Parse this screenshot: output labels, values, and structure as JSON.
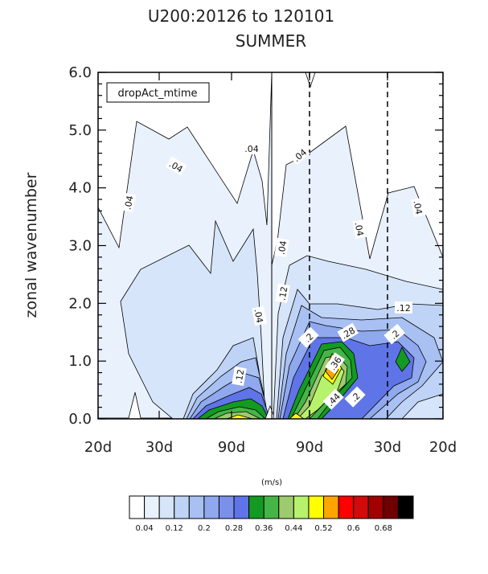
{
  "chart_data": {
    "type": "heatmap",
    "title": "U200:20126 to 120101",
    "subtitle": "SUMMER",
    "ylabel": "zonal wavenumber",
    "ylim": [
      0,
      6
    ],
    "yticks": [
      "0.0",
      "1.0",
      "2.0",
      "3.0",
      "4.0",
      "5.0",
      "6.0"
    ],
    "xticks": [
      "20d",
      "30d",
      "90d",
      "90d",
      "30d",
      "20d"
    ],
    "legend_box": "dropAct_mtime",
    "units": "(m/s)",
    "levels": [
      0.04,
      0.08,
      0.12,
      0.16,
      0.2,
      0.24,
      0.28,
      0.32,
      0.36,
      0.4,
      0.44,
      0.48,
      0.52,
      0.56,
      0.6,
      0.64,
      0.68
    ],
    "colorbar_labels": [
      "0.04",
      "0.12",
      "0.2",
      "0.28",
      "0.36",
      "0.44",
      "0.52",
      "0.6",
      "0.68"
    ],
    "colors": [
      "#ffffff",
      "#e9f1fc",
      "#d6e5fa",
      "#bfd3f6",
      "#a8c0f2",
      "#8fa8ee",
      "#7a90ea",
      "#5f74e6",
      "#149a22",
      "#46b548",
      "#9dcb6e",
      "#b6f26c",
      "#ffff00",
      "#ffa500",
      "#ff0000",
      "#d10a0a",
      "#a00000",
      "#6e0000",
      "#000000"
    ],
    "contour_labels": [
      ".04",
      ".04",
      ".04",
      ".04",
      ".04",
      ".04",
      ".04",
      ".04",
      ".12",
      ".12",
      ".12",
      ".2",
      ".2",
      ".2",
      ".28",
      ".36",
      ".44"
    ],
    "grid": false
  }
}
